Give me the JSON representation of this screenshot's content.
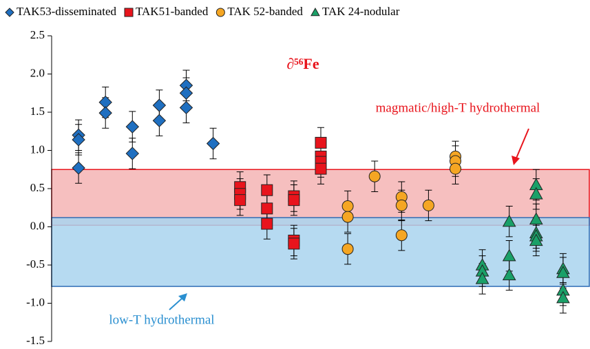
{
  "chart_data": {
    "type": "scatter",
    "title": "∂⁵⁶Fe",
    "annotations": [
      "magmatic/high-T hydrothermal",
      "low-T hydrothermal"
    ],
    "bands": [
      {
        "range": [
          0.02,
          0.75
        ],
        "color": "#f4b4b4",
        "edge": "#e8141c"
      },
      {
        "range": [
          -0.78,
          0.12
        ],
        "color": "#a9d4ee",
        "edge": "#2f6db5"
      }
    ],
    "xlim": [
      0,
      20
    ],
    "ylim": [
      -1.5,
      2.5
    ],
    "yticks": [
      {
        "value": -1.5,
        "label": "-1.5"
      },
      {
        "value": -1,
        "label": "-1.0"
      },
      -0.5,
      {
        "value": 0,
        "label": "0.0"
      },
      0.5,
      {
        "value": 1,
        "label": "1.0"
      },
      1.5,
      {
        "value": 2,
        "label": "2.0"
      },
      2.5
    ],
    "series": [
      {
        "name": "TAK53-disseminated",
        "marker": "diamond",
        "color": "#1f6fc0",
        "x": [
          1,
          1,
          1,
          2,
          2,
          3,
          3,
          4,
          4,
          5,
          5,
          5,
          6
        ],
        "values": [
          1.2,
          1.14,
          0.77,
          1.63,
          1.49,
          1.31,
          0.96,
          1.59,
          1.39,
          1.85,
          1.75,
          1.56,
          1.09
        ],
        "errors": [
          0.2,
          0.2,
          0.2,
          0.2,
          0.2,
          0.2,
          0.2,
          0.2,
          0.2,
          0.2,
          0.2,
          0.2,
          0.2
        ]
      },
      {
        "name": "TAK51-banded",
        "marker": "square",
        "color": "#e8141c",
        "x": [
          7,
          7,
          7,
          8,
          8,
          8,
          9,
          9,
          9,
          9,
          10,
          10,
          10,
          10
        ],
        "values": [
          0.52,
          0.43,
          0.35,
          0.48,
          0.24,
          0.04,
          0.4,
          0.35,
          -0.18,
          -0.22,
          1.1,
          0.92,
          0.85,
          0.76
        ],
        "errors": [
          0.2,
          0.2,
          0.2,
          0.2,
          0.2,
          0.2,
          0.2,
          0.2,
          0.2,
          0.2,
          0.2,
          0.2,
          0.2,
          0.2
        ]
      },
      {
        "name": "TAK 52-banded",
        "marker": "circle",
        "color": "#f5a623",
        "x": [
          11,
          11,
          11,
          12,
          13,
          13,
          13,
          14,
          15,
          15,
          15
        ],
        "values": [
          0.27,
          0.13,
          -0.29,
          0.66,
          0.39,
          0.28,
          -0.11,
          0.28,
          0.92,
          0.86,
          0.76
        ],
        "errors": [
          0.2,
          0.2,
          0.2,
          0.2,
          0.2,
          0.2,
          0.2,
          0.2,
          0.2,
          0.2,
          0.2
        ]
      },
      {
        "name": "TAK 24-nodular",
        "marker": "triangle",
        "color": "#1aa068",
        "x": [
          16,
          16,
          16,
          17,
          17,
          17,
          18,
          18,
          18,
          18,
          18,
          18,
          19,
          19,
          19,
          19
        ],
        "values": [
          -0.5,
          -0.58,
          -0.68,
          0.07,
          -0.38,
          -0.63,
          0.55,
          0.43,
          0.1,
          -0.08,
          -0.12,
          -0.18,
          -0.55,
          -0.6,
          -0.83,
          -0.93
        ],
        "errors": [
          0.2,
          0.2,
          0.2,
          0.2,
          0.2,
          0.2,
          0.2,
          0.2,
          0.2,
          0.2,
          0.2,
          0.2,
          0.2,
          0.2,
          0.2,
          0.2
        ]
      }
    ]
  }
}
